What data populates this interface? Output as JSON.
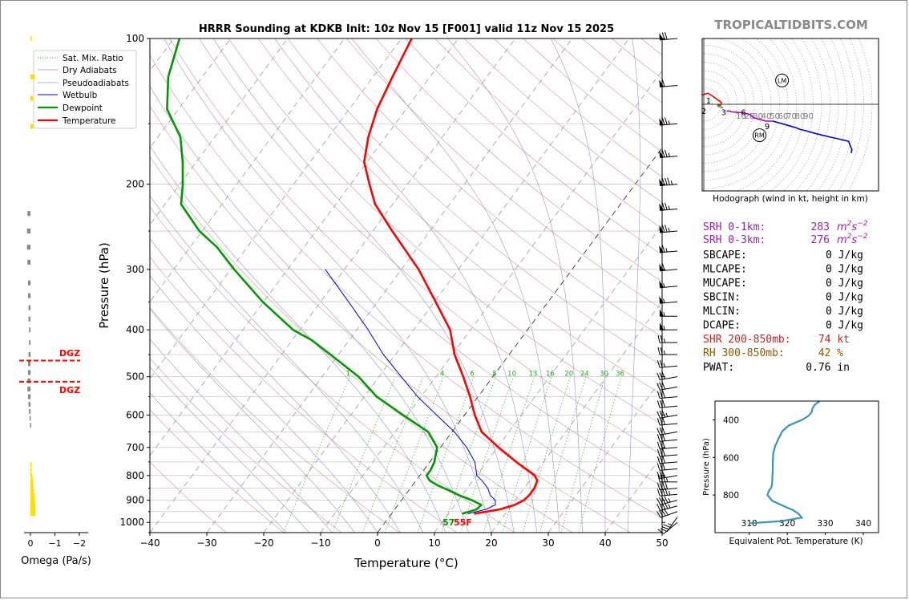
{
  "title": "HRRR Sounding at KDKB Init: 10z Nov 15 [F001] valid 11z Nov 15 2025",
  "brand": "TROPICALTIDBITS.COM",
  "colors": {
    "temperature": "#ff0000",
    "dewpoint": "#009900",
    "wetbulb": "#0000dd",
    "dry_adiabat": "#d08080",
    "moist_adiabat": "#8080c8",
    "mixing_ratio": "#22aa22",
    "omega_up": "#ffdd00",
    "omega_down": "#888888",
    "dgz": "#ff0000",
    "theta_e": "#3a95b8",
    "srh": "#9922aa",
    "shr": "#cc2222",
    "rh": "#8b5a00"
  },
  "chart_data": [
    {
      "type": "line",
      "name": "skewt",
      "xlabel": "Temperature (°C)",
      "ylabel": "Pressure (hPa)",
      "xlim": [
        -40,
        50
      ],
      "ylim": [
        1050,
        100
      ],
      "yscale": "log",
      "x_ticks": [
        -40,
        -30,
        -20,
        -10,
        0,
        10,
        20,
        30,
        40,
        50
      ],
      "x_tick_labels": [
        "−40",
        "−30",
        "−20",
        "−10",
        "0",
        "10",
        "20",
        "30",
        "40",
        "50"
      ],
      "y_ticks": [
        100,
        200,
        300,
        400,
        500,
        600,
        700,
        800,
        900,
        1000
      ],
      "y_tick_labels": [
        "100",
        "200",
        "300",
        "400",
        "500",
        "600",
        "700",
        "800",
        "900",
        "1000"
      ],
      "legend": [
        "Sat. Mix. Ratio",
        "Dry Adiabats",
        "Pseudoadiabats",
        "Wetbulb",
        "Dewpoint",
        "Temperature"
      ],
      "legend_location": "top-left",
      "mixing_ratio_labels": [
        "1",
        "4",
        "6",
        "8",
        "10",
        "13",
        "16",
        "20",
        "24",
        "30",
        "36"
      ],
      "surface_dewpoint_label": "57",
      "surface_temperature_label": "55F",
      "series": [
        {
          "name": "Temperature",
          "pressure": [
            960,
            940,
            920,
            900,
            880,
            850,
            820,
            800,
            780,
            750,
            700,
            650,
            600,
            550,
            500,
            450,
            400,
            350,
            300,
            250,
            220,
            200,
            180,
            160,
            140,
            120,
            100
          ],
          "values": [
            14.5,
            18.5,
            20.5,
            21.5,
            21.8,
            21.8,
            21.3,
            20.2,
            18.2,
            15.2,
            10.2,
            5.2,
            1.8,
            -1.4,
            -5.2,
            -9.6,
            -13.6,
            -19.8,
            -27.0,
            -36.6,
            -43.1,
            -46.7,
            -50.5,
            -53.0,
            -55.1,
            -56.6,
            -58.2
          ]
        },
        {
          "name": "Dewpoint",
          "pressure": [
            960,
            940,
            920,
            900,
            880,
            860,
            840,
            820,
            800,
            780,
            750,
            700,
            650,
            600,
            550,
            500,
            450,
            420,
            400,
            350,
            300,
            270,
            250,
            220,
            200,
            180,
            160,
            140,
            120,
            100
          ],
          "values": [
            12.4,
            14.4,
            14.6,
            12.4,
            9.6,
            7.2,
            4.6,
            2.4,
            1.2,
            1.2,
            0.8,
            -0.6,
            -4.2,
            -10.8,
            -17.8,
            -23.6,
            -31.4,
            -36.6,
            -41.2,
            -50.2,
            -59.4,
            -65.3,
            -70.5,
            -77.2,
            -79.5,
            -82.4,
            -86.0,
            -92.0,
            -96.0,
            -99.0
          ]
        },
        {
          "name": "Wetbulb",
          "pressure": [
            960,
            940,
            920,
            900,
            880,
            850,
            820,
            800,
            780,
            750,
            700,
            650,
            600,
            550,
            500,
            450,
            400,
            350,
            300
          ],
          "values": [
            13.4,
            16.0,
            17.1,
            16.5,
            15.0,
            13.6,
            11.6,
            10.0,
            9.2,
            7.9,
            4.6,
            0.4,
            -4.9,
            -10.6,
            -16.1,
            -22.1,
            -28.0,
            -35.1,
            -43.4
          ]
        }
      ]
    },
    {
      "type": "bar",
      "name": "omega",
      "xlabel": "Omega (Pa/s)",
      "x_ticks": [
        0,
        -1,
        -2
      ],
      "x_tick_labels": [
        "0",
        "−1",
        "−2"
      ],
      "dgz_label": "DGZ",
      "dgz_top_hPa": 463,
      "dgz_bottom_hPa": 512,
      "pressure": [
        100,
        120,
        133,
        152,
        230,
        250,
        270,
        290,
        320,
        340,
        360,
        380,
        400,
        425,
        450,
        470,
        490,
        510,
        530,
        550,
        570,
        590,
        610,
        630,
        760,
        780,
        800,
        820,
        840,
        860,
        880,
        900,
        920,
        940,
        960
      ],
      "values": [
        -0.05,
        -0.18,
        -0.1,
        -0.12,
        0.12,
        0.14,
        0.14,
        0.12,
        0.1,
        0.1,
        0.08,
        0.08,
        0.06,
        0.06,
        0.08,
        0.1,
        0.1,
        0.12,
        0.12,
        0.1,
        0.08,
        0.06,
        0.04,
        0.02,
        -0.03,
        -0.05,
        -0.08,
        -0.1,
        -0.12,
        -0.14,
        -0.16,
        -0.18,
        -0.2,
        -0.2,
        -0.2
      ]
    },
    {
      "type": "line",
      "name": "hodograph",
      "xlabel": "Hodograph (wind in kt, height in km)",
      "ring_labels": [
        "10",
        "20",
        "30",
        "40",
        "50",
        "60",
        "70",
        "80",
        "90"
      ],
      "markers": [
        "LM",
        "RM"
      ],
      "height_labels": [
        "1",
        "2",
        "3",
        "6",
        "9"
      ],
      "segments": [
        {
          "name": "0-1 km",
          "u": [
            -13,
            1,
            5,
            10,
            17,
            21,
            20,
            18,
            16
          ],
          "v": [
            7,
            12,
            13,
            10,
            5,
            2,
            -1,
            -1,
            -1
          ]
        },
        {
          "name": "1-3 km",
          "u": [
            16,
            20,
            22,
            23,
            24,
            23,
            22,
            20
          ],
          "v": [
            -2,
            -3,
            -4,
            -6,
            -8,
            -9,
            -9,
            -9
          ]
        },
        {
          "name": "3-6 km",
          "u": [
            22,
            24,
            27,
            30,
            33
          ],
          "v": [
            -9,
            -8,
            -8,
            -8,
            -9
          ]
        },
        {
          "name": "6-9 km",
          "u": [
            33,
            45,
            55,
            59,
            63,
            70,
            74,
            82
          ],
          "v": [
            -9,
            -10,
            -12,
            -16,
            -17,
            -19,
            -20,
            -20
          ]
        },
        {
          "name": "9-12 km",
          "u": [
            82,
            100,
            110,
            112,
            115,
            120,
            130,
            142,
            150,
            160,
            172,
            176,
            175
          ],
          "v": [
            -20,
            -25,
            -28,
            -29,
            -30,
            -31,
            -34,
            -37,
            -39,
            -41,
            -44,
            -54,
            -58
          ]
        }
      ],
      "lm": {
        "u": 32,
        "v": 13
      },
      "rm": {
        "u": 10,
        "v": -12
      },
      "colors": [
        "#ff0000",
        "#22aa22",
        "#b000b0",
        "#b000b0",
        "#0000dd"
      ]
    },
    {
      "type": "line",
      "name": "theta_e",
      "xlabel": "Equivalent Pot. Temperature (K)",
      "ylabel": "Pressure (hPa)",
      "xlim": [
        301,
        344
      ],
      "ylim": [
        1000,
        300
      ],
      "x_ticks": [
        310,
        320,
        330,
        340
      ],
      "x_tick_labels": [
        "310",
        "320",
        "330",
        "340"
      ],
      "y_ticks": [
        400,
        600,
        800
      ],
      "y_tick_labels": [
        "400",
        "600",
        "800"
      ],
      "pressure": [
        300,
        320,
        340,
        360,
        380,
        400,
        430,
        460,
        500,
        540,
        580,
        620,
        660,
        700,
        740,
        760,
        780,
        800,
        830,
        860,
        880,
        900,
        920,
        940,
        950
      ],
      "values": [
        328.5,
        327.2,
        326.6,
        326.4,
        325.5,
        323.9,
        320.4,
        318.7,
        317.7,
        316.8,
        316.3,
        316.2,
        316.2,
        316.1,
        316.0,
        315.8,
        315.1,
        314.8,
        316.0,
        319.2,
        321.5,
        323.0,
        323.8,
        318.0,
        310.3
      ]
    }
  ],
  "wind_barbs": {
    "pressure": [
      1000,
      975,
      950,
      925,
      900,
      875,
      850,
      825,
      800,
      775,
      750,
      725,
      700,
      675,
      650,
      625,
      600,
      575,
      550,
      525,
      500,
      475,
      450,
      425,
      400,
      375,
      350,
      325,
      300,
      275,
      250,
      225,
      200,
      175,
      150,
      125,
      100
    ],
    "speed_kt": [
      10,
      35,
      40,
      45,
      45,
      45,
      40,
      35,
      30,
      30,
      30,
      30,
      30,
      30,
      30,
      30,
      35,
      30,
      30,
      30,
      30,
      25,
      25,
      25,
      55,
      55,
      55,
      55,
      60,
      65,
      75,
      75,
      85,
      75,
      75,
      60,
      70
    ],
    "direction_deg": [
      230,
      215,
      250,
      255,
      255,
      265,
      265,
      270,
      260,
      265,
      265,
      265,
      265,
      265,
      260,
      265,
      260,
      265,
      265,
      260,
      260,
      265,
      270,
      270,
      270,
      270,
      265,
      265,
      265,
      265,
      265,
      265,
      265,
      265,
      265,
      265,
      265
    ]
  },
  "indices": {
    "srh_1km_label": "SRH 0-1km:",
    "srh_1km_value": "283",
    "srh_3km_label": "SRH 0-3km:",
    "srh_3km_value": "276",
    "srh_units_base": "m",
    "srh_units_sup1": "2",
    "srh_units_mid": "s",
    "srh_units_sup2": "−2",
    "rows": [
      {
        "label": "SBCAPE:",
        "value": "0 J/kg"
      },
      {
        "label": "MLCAPE:",
        "value": "0 J/kg"
      },
      {
        "label": "MUCAPE:",
        "value": "0 J/kg"
      },
      {
        "label": "SBCIN:",
        "value": "0 J/kg"
      },
      {
        "label": "MLCIN:",
        "value": "0 J/kg"
      },
      {
        "label": "DCAPE:",
        "value": "0 J/kg"
      }
    ],
    "shr_label": "SHR 200-850mb:",
    "shr_value": "74 kt",
    "rh_label": "RH 300-850mb:",
    "rh_value": "42 %",
    "pwat_label": "PWAT:",
    "pwat_value": "0.76 in"
  }
}
